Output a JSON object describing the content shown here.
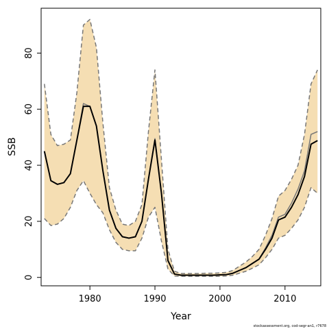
{
  "chart_data": {
    "type": "line",
    "xlabel": "Year",
    "ylabel": "SSB",
    "xlim": [
      1972.5,
      2015.5
    ],
    "ylim": [
      -3,
      96
    ],
    "xticks": [
      1980,
      1990,
      2000,
      2010
    ],
    "yticks": [
      0,
      20,
      40,
      60,
      80
    ],
    "grid": false,
    "legend": "none",
    "credit": "stockassessment.org, cod-segr-an1, r7678",
    "colors": {
      "band": "#f5deb3",
      "estimate": "#000000",
      "alt_estimate": "#777777",
      "bounds": "#777777"
    },
    "x": [
      1973,
      1974,
      1975,
      1976,
      1977,
      1978,
      1979,
      1980,
      1981,
      1982,
      1983,
      1984,
      1985,
      1986,
      1987,
      1988,
      1989,
      1990,
      1991,
      1992,
      1993,
      1994,
      1995,
      1996,
      1997,
      1998,
      1999,
      2000,
      2001,
      2002,
      2003,
      2004,
      2005,
      2006,
      2007,
      2008,
      2009,
      2010,
      2011,
      2012,
      2013,
      2014,
      2015
    ],
    "series": [
      {
        "role": "estimate",
        "values": [
          45,
          34.5,
          33.2,
          33.8,
          37,
          49,
          61,
          61,
          54,
          38,
          24,
          17.5,
          14.5,
          14,
          14.5,
          20,
          35,
          49,
          30,
          6,
          1.2,
          0.8,
          0.8,
          0.8,
          0.8,
          0.8,
          0.8,
          0.9,
          1,
          1.5,
          2.5,
          3.5,
          5,
          6.5,
          10,
          14,
          20.5,
          21.5,
          25,
          29.5,
          36,
          47.5,
          48.8
        ]
      },
      {
        "role": "alt_estimate",
        "values": [
          45,
          34.5,
          33.2,
          33.8,
          37,
          49,
          62,
          61,
          54,
          38,
          24,
          17.5,
          14.5,
          14,
          14.5,
          20,
          35,
          49.5,
          30,
          6,
          1.2,
          0.8,
          0.8,
          0.8,
          0.8,
          0.8,
          0.8,
          0.9,
          1,
          1.5,
          2.5,
          3.5,
          5,
          6.5,
          10.5,
          15,
          21.5,
          22.5,
          26.5,
          31.5,
          38,
          51,
          52
        ]
      },
      {
        "role": "upper",
        "values": [
          69,
          51,
          47,
          47.5,
          49,
          66,
          90,
          92,
          82,
          55,
          32,
          24,
          19,
          18.5,
          20,
          26,
          52,
          74,
          42,
          10,
          2.2,
          1.4,
          1.4,
          1.4,
          1.4,
          1.5,
          1.5,
          1.6,
          1.8,
          2.5,
          4,
          5.5,
          7.5,
          10,
          15,
          21,
          29,
          31,
          35,
          40,
          51,
          69,
          74
        ]
      },
      {
        "role": "lower",
        "values": [
          21,
          18.5,
          19,
          21,
          25,
          31,
          34.5,
          30,
          26,
          23,
          17,
          12.5,
          10,
          9.5,
          9.5,
          14,
          21.5,
          25,
          13,
          3,
          0.5,
          0.4,
          0.4,
          0.4,
          0.4,
          0.4,
          0.4,
          0.4,
          0.5,
          0.8,
          1.5,
          2.2,
          3.3,
          4.5,
          7,
          10,
          14,
          15,
          17.5,
          20.5,
          25,
          32,
          30
        ]
      }
    ]
  }
}
